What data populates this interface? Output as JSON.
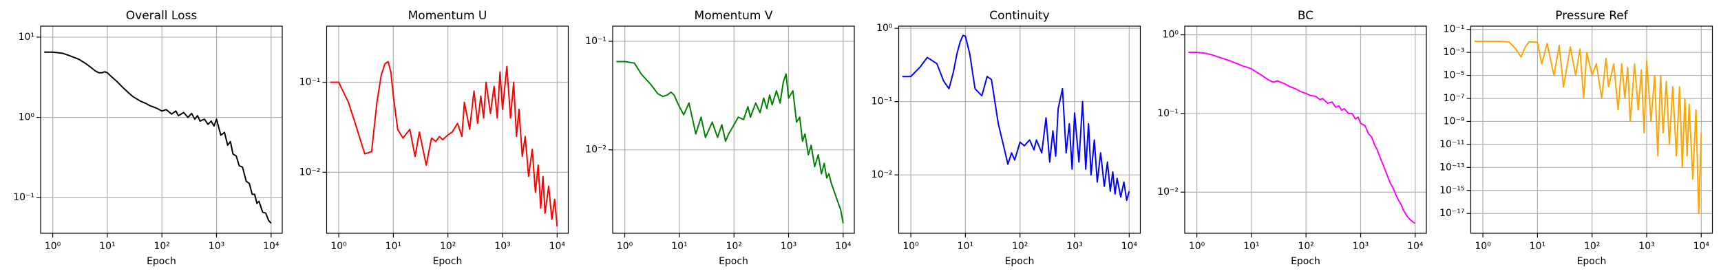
{
  "chart_data": [
    {
      "type": "line",
      "title": "Overall Loss",
      "x_label": "Epoch",
      "xscale": "log",
      "yscale": "log",
      "grid": true,
      "color": "#000000",
      "xlim": [
        0.6,
        16000
      ],
      "ylim": [
        0.036,
        13.7
      ],
      "xticks": [
        {
          "value": 1,
          "label": "10⁰"
        },
        {
          "value": 10,
          "label": "10¹"
        },
        {
          "value": 100,
          "label": "10²"
        },
        {
          "value": 1000,
          "label": "10³"
        },
        {
          "value": 10000,
          "label": "10⁴"
        }
      ],
      "yticks": [
        {
          "value": 10,
          "label": "10¹"
        },
        {
          "value": 1,
          "label": "10⁰"
        },
        {
          "value": 0.1,
          "label": "10⁻¹"
        }
      ],
      "x": [
        0.7,
        1,
        1.5,
        2,
        3,
        4,
        5,
        6,
        7,
        8,
        9,
        10,
        12,
        15,
        20,
        25,
        30,
        40,
        50,
        60,
        70,
        80,
        100,
        120,
        150,
        180,
        200,
        250,
        300,
        350,
        400,
        450,
        500,
        600,
        700,
        800,
        900,
        1000,
        1200,
        1400,
        1600,
        1800,
        2000,
        2300,
        2600,
        3000,
        3500,
        4000,
        4500,
        5000,
        5500,
        6000,
        7000,
        8000,
        9000,
        10000
      ],
      "values": [
        6.5,
        6.5,
        6.3,
        5.9,
        5.3,
        4.7,
        4.2,
        3.8,
        3.6,
        3.6,
        3.7,
        3.6,
        3.2,
        2.8,
        2.3,
        2.0,
        1.8,
        1.6,
        1.5,
        1.4,
        1.35,
        1.3,
        1.2,
        1.25,
        1.1,
        1.2,
        1.05,
        1.15,
        1.0,
        1.12,
        0.95,
        1.05,
        0.9,
        0.95,
        0.82,
        0.9,
        0.78,
        0.95,
        0.6,
        0.65,
        0.45,
        0.5,
        0.35,
        0.33,
        0.25,
        0.24,
        0.16,
        0.15,
        0.11,
        0.11,
        0.085,
        0.09,
        0.066,
        0.064,
        0.052,
        0.048
      ]
    },
    {
      "type": "line",
      "title": "Momentum U",
      "x_label": "Epoch",
      "xscale": "log",
      "yscale": "log",
      "grid": true,
      "color": "#ff0000",
      "xlim": [
        0.6,
        16000
      ],
      "ylim": [
        0.0021,
        0.42
      ],
      "xticks": [
        {
          "value": 1,
          "label": "10⁰"
        },
        {
          "value": 10,
          "label": "10¹"
        },
        {
          "value": 100,
          "label": "10²"
        },
        {
          "value": 1000,
          "label": "10³"
        },
        {
          "value": 10000,
          "label": "10⁴"
        }
      ],
      "yticks": [
        {
          "value": 0.1,
          "label": "10⁻¹"
        },
        {
          "value": 0.01,
          "label": "10⁻²"
        }
      ],
      "x": [
        0.7,
        1,
        1.5,
        2,
        3,
        4,
        5,
        6,
        7,
        8,
        9,
        10,
        12,
        15,
        20,
        25,
        30,
        40,
        50,
        60,
        70,
        80,
        100,
        120,
        150,
        180,
        200,
        250,
        300,
        350,
        400,
        450,
        500,
        600,
        700,
        800,
        900,
        1000,
        1200,
        1400,
        1600,
        1800,
        2000,
        2300,
        2600,
        3000,
        3500,
        4000,
        4500,
        5000,
        5500,
        6000,
        7000,
        8000,
        9000,
        10000
      ],
      "values": [
        0.1,
        0.1,
        0.06,
        0.035,
        0.016,
        0.017,
        0.06,
        0.12,
        0.16,
        0.17,
        0.13,
        0.07,
        0.03,
        0.024,
        0.03,
        0.015,
        0.028,
        0.012,
        0.024,
        0.022,
        0.025,
        0.023,
        0.026,
        0.028,
        0.035,
        0.025,
        0.06,
        0.03,
        0.08,
        0.035,
        0.07,
        0.04,
        0.1,
        0.045,
        0.09,
        0.04,
        0.13,
        0.05,
        0.15,
        0.04,
        0.1,
        0.025,
        0.05,
        0.015,
        0.025,
        0.009,
        0.018,
        0.006,
        0.012,
        0.004,
        0.009,
        0.0035,
        0.007,
        0.003,
        0.005,
        0.0025
      ]
    },
    {
      "type": "line",
      "title": "Momentum V",
      "x_label": "Epoch",
      "xscale": "log",
      "yscale": "log",
      "grid": true,
      "color": "#008000",
      "xlim": [
        0.6,
        16000
      ],
      "ylim": [
        0.0017,
        0.138
      ],
      "xticks": [
        {
          "value": 1,
          "label": "10⁰"
        },
        {
          "value": 10,
          "label": "10¹"
        },
        {
          "value": 100,
          "label": "10²"
        },
        {
          "value": 1000,
          "label": "10³"
        },
        {
          "value": 10000,
          "label": "10⁴"
        }
      ],
      "yticks": [
        {
          "value": 0.1,
          "label": "10⁻¹"
        },
        {
          "value": 0.01,
          "label": "10⁻²"
        }
      ],
      "x": [
        0.7,
        1,
        1.5,
        2,
        3,
        4,
        5,
        6,
        7,
        8,
        9,
        10,
        12,
        15,
        20,
        25,
        30,
        40,
        50,
        60,
        70,
        80,
        100,
        120,
        150,
        180,
        200,
        250,
        300,
        350,
        400,
        450,
        500,
        600,
        700,
        800,
        900,
        1000,
        1200,
        1400,
        1600,
        1800,
        2000,
        2300,
        2600,
        3000,
        3500,
        4000,
        4500,
        5000,
        5500,
        6000,
        7000,
        8000,
        9000,
        10000
      ],
      "values": [
        0.065,
        0.065,
        0.063,
        0.05,
        0.04,
        0.033,
        0.031,
        0.032,
        0.034,
        0.032,
        0.028,
        0.025,
        0.021,
        0.027,
        0.014,
        0.02,
        0.013,
        0.018,
        0.013,
        0.017,
        0.012,
        0.014,
        0.017,
        0.02,
        0.019,
        0.025,
        0.02,
        0.027,
        0.022,
        0.03,
        0.024,
        0.032,
        0.026,
        0.035,
        0.027,
        0.042,
        0.05,
        0.03,
        0.035,
        0.018,
        0.02,
        0.012,
        0.014,
        0.009,
        0.011,
        0.007,
        0.009,
        0.006,
        0.0075,
        0.0055,
        0.006,
        0.005,
        0.004,
        0.0033,
        0.0028,
        0.0021
      ]
    },
    {
      "type": "line",
      "title": "Continuity",
      "x_label": "Epoch",
      "xscale": "log",
      "yscale": "log",
      "grid": true,
      "color": "#0000ff",
      "xlim": [
        0.6,
        16000
      ],
      "ylim": [
        0.0016,
        1.07
      ],
      "xticks": [
        {
          "value": 1,
          "label": "10⁰"
        },
        {
          "value": 10,
          "label": "10¹"
        },
        {
          "value": 100,
          "label": "10²"
        },
        {
          "value": 1000,
          "label": "10³"
        },
        {
          "value": 10000,
          "label": "10⁴"
        }
      ],
      "yticks": [
        {
          "value": 1,
          "label": "10⁰"
        },
        {
          "value": 0.1,
          "label": "10⁻¹"
        },
        {
          "value": 0.01,
          "label": "10⁻²"
        }
      ],
      "x": [
        0.7,
        1,
        1.5,
        2,
        3,
        4,
        5,
        6,
        7,
        8,
        9,
        10,
        12,
        15,
        20,
        25,
        30,
        40,
        50,
        60,
        70,
        80,
        100,
        120,
        150,
        180,
        200,
        250,
        300,
        350,
        400,
        450,
        500,
        600,
        700,
        800,
        900,
        1000,
        1200,
        1400,
        1600,
        1800,
        2000,
        2300,
        2600,
        3000,
        3500,
        4000,
        4500,
        5000,
        5500,
        6000,
        7000,
        8000,
        9000,
        10000
      ],
      "values": [
        0.22,
        0.22,
        0.3,
        0.4,
        0.33,
        0.19,
        0.15,
        0.25,
        0.45,
        0.65,
        0.8,
        0.78,
        0.45,
        0.15,
        0.12,
        0.22,
        0.2,
        0.05,
        0.025,
        0.014,
        0.02,
        0.016,
        0.028,
        0.025,
        0.03,
        0.022,
        0.03,
        0.02,
        0.06,
        0.015,
        0.04,
        0.018,
        0.08,
        0.15,
        0.02,
        0.05,
        0.012,
        0.07,
        0.015,
        0.1,
        0.012,
        0.05,
        0.01,
        0.03,
        0.008,
        0.02,
        0.007,
        0.015,
        0.006,
        0.011,
        0.0055,
        0.009,
        0.005,
        0.008,
        0.0045,
        0.006
      ]
    },
    {
      "type": "line",
      "title": "BC",
      "x_label": "Epoch",
      "xscale": "log",
      "yscale": "log",
      "grid": true,
      "color": "#ff00ff",
      "xlim": [
        0.6,
        16000
      ],
      "ylim": [
        0.003,
        1.29
      ],
      "xticks": [
        {
          "value": 1,
          "label": "10⁰"
        },
        {
          "value": 10,
          "label": "10¹"
        },
        {
          "value": 100,
          "label": "10²"
        },
        {
          "value": 1000,
          "label": "10³"
        },
        {
          "value": 10000,
          "label": "10⁴"
        }
      ],
      "yticks": [
        {
          "value": 1,
          "label": "10⁰"
        },
        {
          "value": 0.1,
          "label": "10⁻¹"
        },
        {
          "value": 0.01,
          "label": "10⁻²"
        }
      ],
      "x": [
        0.7,
        1,
        1.5,
        2,
        3,
        4,
        5,
        6,
        7,
        8,
        9,
        10,
        12,
        15,
        20,
        25,
        30,
        40,
        50,
        60,
        70,
        80,
        100,
        120,
        150,
        180,
        200,
        250,
        300,
        350,
        400,
        450,
        500,
        600,
        700,
        800,
        900,
        1000,
        1200,
        1400,
        1600,
        1800,
        2000,
        2300,
        2600,
        3000,
        3500,
        4000,
        4500,
        5000,
        5500,
        6000,
        7000,
        8000,
        9000,
        10000
      ],
      "values": [
        0.6,
        0.6,
        0.58,
        0.55,
        0.5,
        0.47,
        0.44,
        0.42,
        0.4,
        0.39,
        0.38,
        0.37,
        0.34,
        0.31,
        0.27,
        0.25,
        0.26,
        0.24,
        0.22,
        0.21,
        0.2,
        0.19,
        0.18,
        0.17,
        0.165,
        0.15,
        0.155,
        0.135,
        0.14,
        0.12,
        0.125,
        0.11,
        0.115,
        0.1,
        0.1,
        0.085,
        0.09,
        0.075,
        0.07,
        0.055,
        0.05,
        0.04,
        0.035,
        0.027,
        0.022,
        0.017,
        0.013,
        0.011,
        0.009,
        0.0078,
        0.007,
        0.006,
        0.005,
        0.0045,
        0.0042,
        0.004
      ]
    },
    {
      "type": "line",
      "title": "Pressure Ref",
      "x_label": "Epoch",
      "xscale": "log",
      "yscale": "log",
      "grid": true,
      "color": "#ffa500",
      "xlim": [
        0.6,
        16000
      ],
      "ylim": [
        1.9e-19,
        0.19
      ],
      "xticks": [
        {
          "value": 1,
          "label": "10⁰"
        },
        {
          "value": 10,
          "label": "10¹"
        },
        {
          "value": 100,
          "label": "10²"
        },
        {
          "value": 1000,
          "label": "10³"
        },
        {
          "value": 10000,
          "label": "10⁴"
        }
      ],
      "yticks": [
        {
          "value": 0.1,
          "label": "10⁻¹"
        },
        {
          "value": 0.001,
          "label": "10⁻³"
        },
        {
          "value": 1e-05,
          "label": "10⁻⁵"
        },
        {
          "value": 1e-07,
          "label": "10⁻⁷"
        },
        {
          "value": 1e-09,
          "label": "10⁻⁹"
        },
        {
          "value": 1e-11,
          "label": "10⁻¹¹"
        },
        {
          "value": 1e-13,
          "label": "10⁻¹³"
        },
        {
          "value": 1e-15,
          "label": "10⁻¹⁵"
        },
        {
          "value": 1e-17,
          "label": "10⁻¹⁷"
        }
      ],
      "x": [
        0.7,
        1,
        1.5,
        2,
        3,
        4,
        5,
        6,
        7,
        8,
        9,
        10,
        12,
        15,
        20,
        25,
        30,
        40,
        50,
        60,
        70,
        80,
        100,
        120,
        150,
        180,
        200,
        250,
        300,
        350,
        400,
        450,
        500,
        600,
        700,
        800,
        900,
        1000,
        1200,
        1400,
        1600,
        1800,
        2000,
        2300,
        2600,
        3000,
        3500,
        4000,
        4500,
        5000,
        5500,
        6000,
        7000,
        8000,
        9000,
        10000
      ],
      "values": [
        0.009,
        0.009,
        0.009,
        0.009,
        0.008,
        0.002,
        0.0004,
        0.003,
        0.008,
        0.008,
        0.008,
        0.007,
        0.0001,
        0.006,
        1e-05,
        0.004,
        1e-06,
        0.003,
        1e-05,
        0.002,
        1e-07,
        0.001,
        1e-05,
        0.0001,
        1e-07,
        0.0003,
        1e-06,
        0.0001,
        1e-08,
        0.0001,
        1e-07,
        5e-05,
        1e-09,
        0.0001,
        1e-08,
        3e-05,
        1e-10,
        0.0002,
        1e-09,
        1e-05,
        1e-12,
        1e-05,
        1e-10,
        3e-06,
        1e-11,
        1e-06,
        1e-12,
        1e-06,
        1e-13,
        1e-07,
        1e-12,
        3e-08,
        1e-14,
        1e-08,
        1e-17,
        1e-10
      ]
    }
  ]
}
